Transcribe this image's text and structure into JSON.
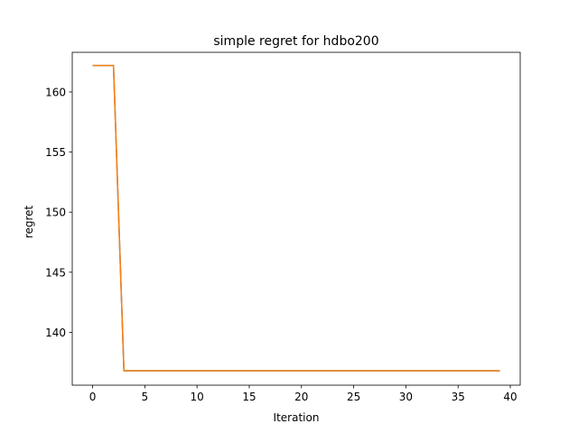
{
  "chart_data": {
    "type": "line",
    "title": "simple regret for hdbo200",
    "xlabel": "Iteration",
    "ylabel": "regret",
    "xlim": [
      -1.95,
      40.95
    ],
    "ylim": [
      135.6,
      163.3
    ],
    "xticks": [
      0,
      5,
      10,
      15,
      20,
      25,
      30,
      35,
      40
    ],
    "yticks": [
      140,
      145,
      150,
      155,
      160
    ],
    "grid": false,
    "series": [
      {
        "color": "#1f77b4",
        "x": [
          0,
          1,
          2,
          3,
          4,
          5,
          6,
          7,
          8,
          9,
          10,
          11,
          12,
          13,
          14,
          15,
          16,
          17,
          18,
          19,
          20,
          21,
          22,
          23,
          24,
          25,
          26,
          27,
          28,
          29,
          30,
          31,
          32,
          33,
          34,
          35,
          36,
          37,
          38,
          39
        ],
        "y": [
          162.2,
          162.2,
          162.2,
          136.8,
          136.8,
          136.8,
          136.8,
          136.8,
          136.8,
          136.8,
          136.8,
          136.8,
          136.8,
          136.8,
          136.8,
          136.8,
          136.8,
          136.8,
          136.8,
          136.8,
          136.8,
          136.8,
          136.8,
          136.8,
          136.8,
          136.8,
          136.8,
          136.8,
          136.8,
          136.8,
          136.8,
          136.8,
          136.8,
          136.8,
          136.8,
          136.8,
          136.8,
          136.8,
          136.8,
          136.8
        ]
      },
      {
        "color": "#ff7f0e",
        "x": [
          0,
          1,
          2,
          3,
          4,
          5,
          6,
          7,
          8,
          9,
          10,
          11,
          12,
          13,
          14,
          15,
          16,
          17,
          18,
          19,
          20,
          21,
          22,
          23,
          24,
          25,
          26,
          27,
          28,
          29,
          30,
          31,
          32,
          33,
          34,
          35,
          36,
          37,
          38,
          39
        ],
        "y": [
          162.2,
          162.2,
          162.2,
          136.8,
          136.8,
          136.8,
          136.8,
          136.8,
          136.8,
          136.8,
          136.8,
          136.8,
          136.8,
          136.8,
          136.8,
          136.8,
          136.8,
          136.8,
          136.8,
          136.8,
          136.8,
          136.8,
          136.8,
          136.8,
          136.8,
          136.8,
          136.8,
          136.8,
          136.8,
          136.8,
          136.8,
          136.8,
          136.8,
          136.8,
          136.8,
          136.8,
          136.8,
          136.8,
          136.8,
          136.8
        ]
      }
    ]
  }
}
